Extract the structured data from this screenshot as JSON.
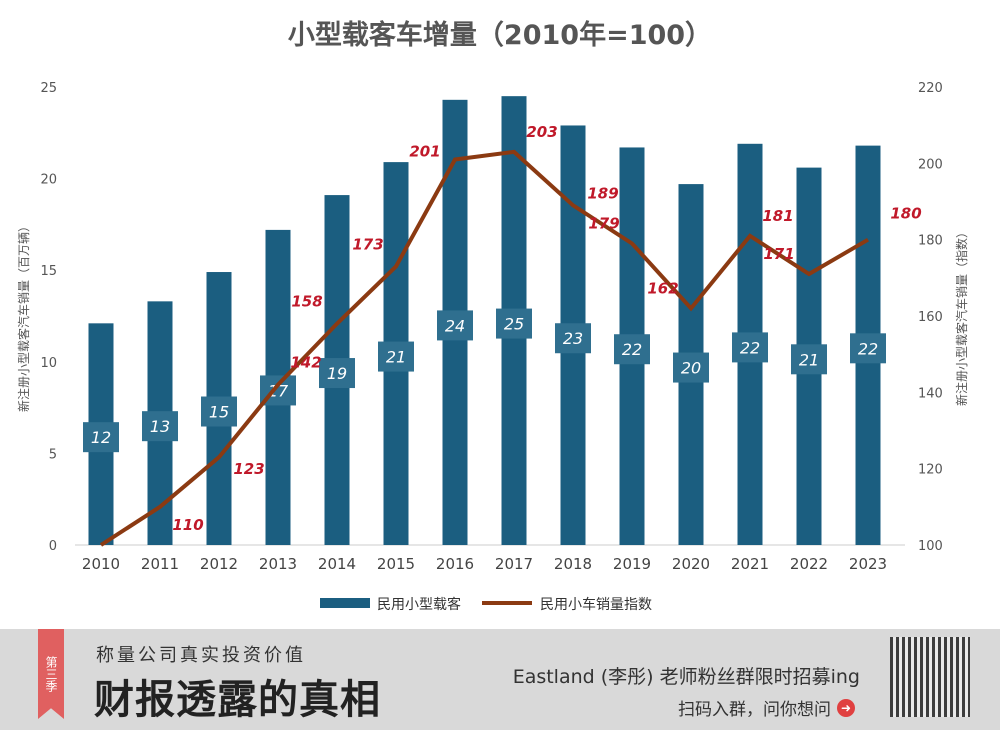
{
  "chart_data": {
    "type": "bar+line",
    "title": "小型载客车增量（2010年=100）",
    "categories": [
      "2010",
      "2011",
      "2012",
      "2013",
      "2014",
      "2015",
      "2016",
      "2017",
      "2018",
      "2019",
      "2020",
      "2021",
      "2022",
      "2023"
    ],
    "series": [
      {
        "name": "民用小型载客",
        "type": "bar",
        "axis": "left",
        "color": "#1b5e80",
        "values": [
          12.1,
          13.3,
          14.9,
          17.2,
          19.1,
          20.9,
          24.3,
          24.5,
          22.9,
          21.7,
          19.7,
          21.9,
          20.6,
          21.8
        ],
        "labels": [
          "12",
          "13",
          "15",
          "17",
          "19",
          "21",
          "24",
          "25",
          "23",
          "22",
          "20",
          "22",
          "21",
          "22"
        ]
      },
      {
        "name": "民用小车销量指数",
        "type": "line",
        "axis": "right",
        "color": "#8b3a12",
        "values": [
          100,
          110,
          123,
          142,
          158,
          173,
          201,
          203,
          189,
          179,
          162,
          181,
          171,
          180
        ],
        "labels": [
          "",
          "110",
          "123",
          "142",
          "158",
          "173",
          "201",
          "203",
          "189",
          "179",
          "162",
          "181",
          "171",
          "180"
        ]
      }
    ],
    "ylabel": "新注册小型载客汽车销量（百万辆）",
    "y2label": "新注册小型载客汽车销量（指数）",
    "ylim": [
      0,
      25
    ],
    "yticks": [
      0,
      5,
      10,
      15,
      20,
      25
    ],
    "y2lim": [
      100,
      220
    ],
    "y2ticks": [
      100,
      120,
      140,
      160,
      180,
      200,
      220
    ],
    "grid": false,
    "legend": "bottom",
    "label_color": "#c0192a"
  },
  "banner": {
    "ribbon": "第三季",
    "subtitle": "称量公司真实投资价值",
    "title": "财报透露的真相",
    "line1": "Eastland (李彤) 老师粉丝群限时招募ing",
    "line2": "扫码入群，问你想问",
    "arrow_icon": "arrow-right-circle-icon"
  }
}
